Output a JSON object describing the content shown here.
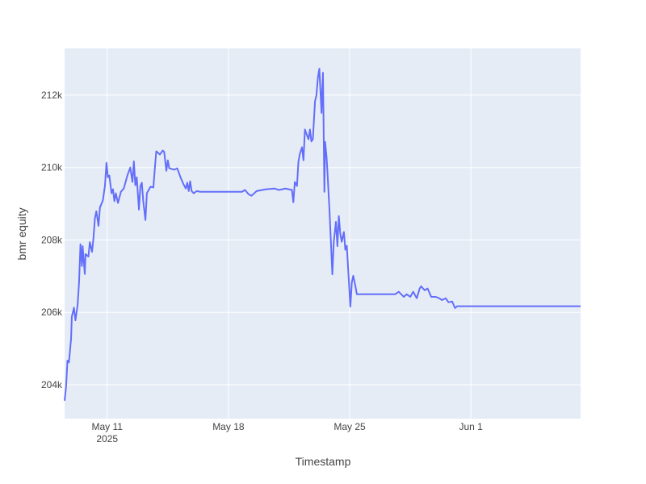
{
  "chart_data": {
    "type": "line",
    "x_label": "Timestamp",
    "y_label": "bmr equity",
    "plot_bgcolor": "#e5ecf6",
    "grid": true,
    "grid_color": "#ffffff",
    "x": [
      "2025-05-08T13:00",
      "2025-05-08T15:00",
      "2025-05-08T17:00",
      "2025-05-08T19:00",
      "2025-05-08T22:00",
      "2025-05-08T23:00",
      "2025-05-09T02:00",
      "2025-05-09T04:00",
      "2025-05-09T07:00",
      "2025-05-09T09:00",
      "2025-05-09T11:00",
      "2025-05-09T13:00",
      "2025-05-09T14:00",
      "2025-05-09T17:00",
      "2025-05-09T18:00",
      "2025-05-09T22:00",
      "2025-05-10T00:00",
      "2025-05-10T03:00",
      "2025-05-10T05:00",
      "2025-05-10T07:00",
      "2025-05-10T09:00",
      "2025-05-10T12:00",
      "2025-05-10T14:00",
      "2025-05-10T18:00",
      "2025-05-10T21:00",
      "2025-05-10T23:00",
      "2025-05-11T01:00",
      "2025-05-11T03:00",
      "2025-05-11T06:00",
      "2025-05-11T08:00",
      "2025-05-11T10:00",
      "2025-05-11T12:00",
      "2025-05-11T15:00",
      "2025-05-11T19:00",
      "2025-05-11T23:00",
      "2025-05-12T04:00",
      "2025-05-12T08:00",
      "2025-05-12T11:00",
      "2025-05-12T13:00",
      "2025-05-12T15:00",
      "2025-05-12T17:00",
      "2025-05-12T20:00",
      "2025-05-12T22:00",
      "2025-05-13T00:00",
      "2025-05-13T02:00",
      "2025-05-13T05:00",
      "2025-05-13T07:00",
      "2025-05-13T12:00",
      "2025-05-13T16:00",
      "2025-05-13T18:00",
      "2025-05-13T20:00",
      "2025-05-14T01:00",
      "2025-05-14T05:00",
      "2025-05-14T07:00",
      "2025-05-14T10:00",
      "2025-05-14T12:00",
      "2025-05-14T14:00",
      "2025-05-14T21:00",
      "2025-05-15T01:00",
      "2025-05-15T06:00",
      "2025-05-15T10:00",
      "2025-05-15T13:00",
      "2025-05-15T15:00",
      "2025-05-15T17:00",
      "2025-05-15T19:00",
      "2025-05-15T21:00",
      "2025-05-16T00:00",
      "2025-05-16T04:00",
      "2025-05-16T09:00",
      "2025-05-18T19:00",
      "2025-05-18T23:00",
      "2025-05-19T04:00",
      "2025-05-19T08:00",
      "2025-05-19T15:00",
      "2025-05-20T04:00",
      "2025-05-20T16:00",
      "2025-05-20T22:00",
      "2025-05-21T07:00",
      "2025-05-21T16:00",
      "2025-05-21T18:00",
      "2025-05-21T20:00",
      "2025-05-21T23:00",
      "2025-05-22T01:00",
      "2025-05-22T03:00",
      "2025-05-22T06:00",
      "2025-05-22T08:00",
      "2025-05-22T10:00",
      "2025-05-22T12:00",
      "2025-05-22T15:00",
      "2025-05-22T17:00",
      "2025-05-22T19:00",
      "2025-05-22T21:00",
      "2025-05-23T00:00",
      "2025-05-23T02:00",
      "2025-05-23T04:00",
      "2025-05-23T06:00",
      "2025-05-23T09:00",
      "2025-05-23T10:00",
      "2025-05-23T11:00",
      "2025-05-23T13:00",
      "2025-05-23T14:00",
      "2025-05-23T16:00",
      "2025-05-23T17:00",
      "2025-05-23T20:00",
      "2025-05-23T22:00",
      "2025-05-24T00:00",
      "2025-05-24T02:00",
      "2025-05-24T05:00",
      "2025-05-24T07:00",
      "2025-05-24T09:00",
      "2025-05-24T11:00",
      "2025-05-24T13:00",
      "2025-05-24T16:00",
      "2025-05-24T18:00",
      "2025-05-24T20:00",
      "2025-05-24T22:00",
      "2025-05-25T01:00",
      "2025-05-25T03:00",
      "2025-05-25T05:00",
      "2025-05-25T08:00",
      "2025-05-25T10:00",
      "2025-05-27T15:00",
      "2025-05-27T20:00",
      "2025-05-28T03:00",
      "2025-05-28T07:00",
      "2025-05-28T12:00",
      "2025-05-28T16:00",
      "2025-05-28T21:00",
      "2025-05-29T01:00",
      "2025-05-29T03:00",
      "2025-05-29T08:00",
      "2025-05-29T12:00",
      "2025-05-29T17:00",
      "2025-05-29T23:00",
      "2025-05-30T04:00",
      "2025-05-30T08:00",
      "2025-05-30T13:00",
      "2025-05-30T17:00",
      "2025-05-30T22:00",
      "2025-05-31T02:00",
      "2025-05-31T05:00",
      "2025-06-07T08:00"
    ],
    "series": [
      {
        "color": "#636efa",
        "values": [
          203560,
          203940,
          204670,
          204620,
          205270,
          205880,
          206130,
          205780,
          206200,
          206820,
          207880,
          207280,
          207830,
          207060,
          207610,
          207540,
          207940,
          207670,
          208050,
          208600,
          208790,
          208390,
          208900,
          209090,
          209510,
          210130,
          209730,
          209780,
          209290,
          209400,
          209070,
          209290,
          209020,
          209330,
          209420,
          209780,
          210000,
          209600,
          210170,
          209510,
          209730,
          208840,
          209490,
          209580,
          209070,
          208550,
          209290,
          209470,
          209450,
          209960,
          210450,
          210360,
          210470,
          210430,
          209910,
          210200,
          209980,
          209940,
          209980,
          209710,
          209530,
          209420,
          209580,
          209350,
          209620,
          209350,
          209290,
          209350,
          209330,
          209330,
          209380,
          209260,
          209220,
          209350,
          209400,
          209420,
          209380,
          209420,
          209380,
          209040,
          209600,
          209490,
          210160,
          210380,
          210560,
          210200,
          211050,
          210940,
          210780,
          211050,
          210720,
          210780,
          211830,
          212000,
          212490,
          212730,
          211510,
          212130,
          212620,
          209330,
          210710,
          210290,
          209960,
          208840,
          207950,
          207050,
          207950,
          208500,
          207830,
          208660,
          208170,
          207950,
          208220,
          207730,
          207840,
          207170,
          206160,
          206830,
          207010,
          206720,
          206500,
          206500,
          206570,
          206430,
          206500,
          206430,
          206570,
          206390,
          206660,
          206720,
          206610,
          206660,
          206430,
          206430,
          206390,
          206340,
          206390,
          206280,
          206300,
          206120,
          206170,
          206170
        ]
      }
    ],
    "xlim": [
      "2025-05-08T13:00",
      "2025-06-07T08:00"
    ],
    "xticks": [
      {
        "value": "2025-05-11T00:00",
        "label": [
          "May 11",
          "2025"
        ]
      },
      {
        "value": "2025-05-18T00:00",
        "label": [
          "May 18"
        ]
      },
      {
        "value": "2025-05-25T00:00",
        "label": [
          "May 25"
        ]
      },
      {
        "value": "2025-06-01T00:00",
        "label": [
          "Jun 1"
        ]
      }
    ],
    "ylim": [
      203065,
      213290
    ],
    "yticks": [
      {
        "value": 204000,
        "label": "204k"
      },
      {
        "value": 206000,
        "label": "206k"
      },
      {
        "value": 208000,
        "label": "208k"
      },
      {
        "value": 210000,
        "label": "210k"
      },
      {
        "value": 212000,
        "label": "212k"
      }
    ]
  }
}
